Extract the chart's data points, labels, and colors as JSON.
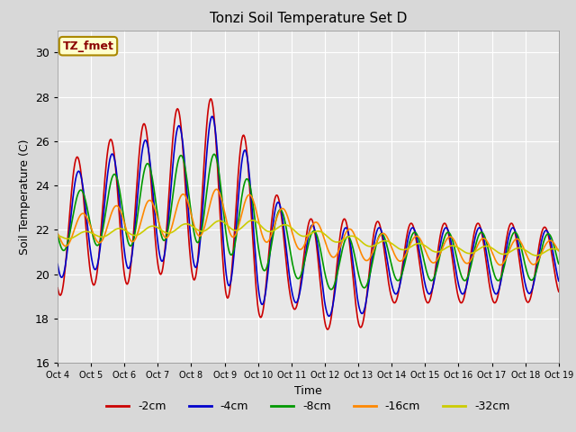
{
  "title": "Tonzi Soil Temperature Set D",
  "xlabel": "Time",
  "ylabel": "Soil Temperature (C)",
  "ylim": [
    16,
    31
  ],
  "background_color": "#d8d8d8",
  "plot_bg_color": "#e8e8e8",
  "annotation_text": "TZ_fmet",
  "annotation_bg": "#ffffcc",
  "annotation_border": "#aa8800",
  "annotation_color": "#8b0000",
  "series": {
    "neg2cm": {
      "color": "#cc0000",
      "label": "-2cm",
      "lw": 1.2
    },
    "neg4cm": {
      "color": "#0000cc",
      "label": "-4cm",
      "lw": 1.2
    },
    "neg8cm": {
      "color": "#009900",
      "label": "-8cm",
      "lw": 1.2
    },
    "neg16cm": {
      "color": "#ff8800",
      "label": "-16cm",
      "lw": 1.2
    },
    "neg32cm": {
      "color": "#cccc00",
      "label": "-32cm",
      "lw": 1.2
    }
  },
  "xtick_labels": [
    "Oct 4",
    "Oct 5",
    "Oct 6",
    "Oct 7",
    "Oct 8",
    "Oct 9",
    "Oct 10",
    "Oct 11",
    "Oct 12",
    "Oct 13",
    "Oct 14",
    "Oct 15",
    "Oct 16",
    "Oct 17",
    "Oct 18",
    "Oct 19"
  ],
  "ytick_labels": [
    16,
    18,
    20,
    22,
    24,
    26,
    28,
    30
  ]
}
